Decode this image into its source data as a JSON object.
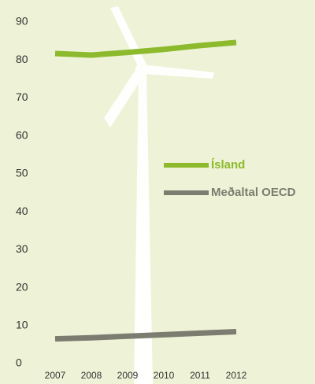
{
  "chart_data": {
    "type": "line",
    "x": [
      "2007",
      "2008",
      "2009",
      "2010",
      "2011",
      "2012"
    ],
    "series": [
      {
        "name": "Ísland",
        "color": "#8cba2c",
        "values": [
          81.7,
          81.3,
          82,
          82.8,
          83.8,
          84.6
        ]
      },
      {
        "name": "Meðaltal OECD",
        "color": "#7c7c70",
        "values": [
          6.5,
          6.8,
          7.2,
          7.6,
          8.0,
          8.4
        ]
      }
    ],
    "ylim": [
      0,
      90
    ],
    "yticks": [
      0,
      10,
      20,
      30,
      40,
      50,
      60,
      70,
      80,
      90
    ]
  }
}
